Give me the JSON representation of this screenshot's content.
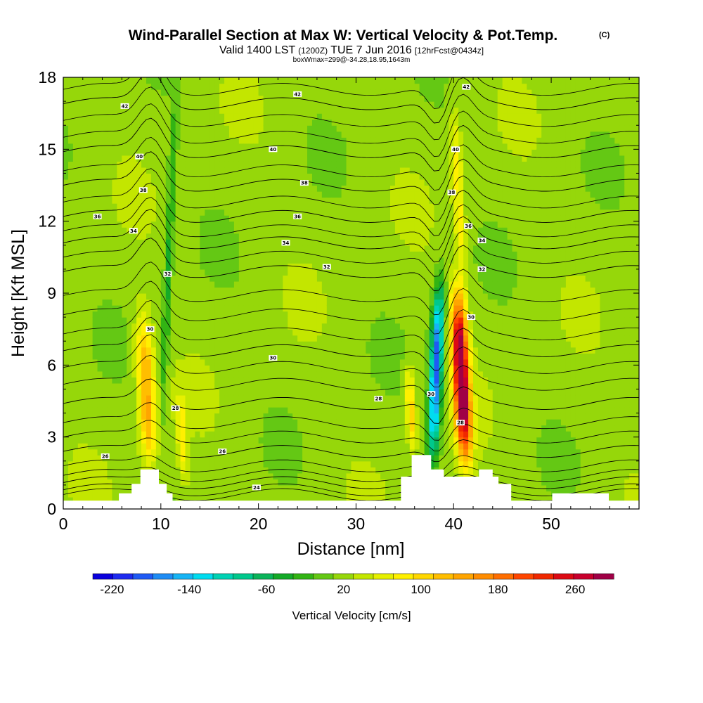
{
  "chart_data": {
    "type": "contour",
    "title": "Wind-Parallel Section at Max W: Vertical Velocity & Pot.Temp.",
    "title_mark": "(C)",
    "subtitle_parts": [
      "Valid 1400 LST",
      "(1200Z)",
      "TUE 7 Jun 2016",
      "[12hrFcst@0434z]"
    ],
    "subtitle2": "boxWmax=299@-34.28,18.95,1643m",
    "xlabel": "Distance [nm]",
    "ylabel": "Height [Kft MSL]",
    "xlim": [
      0,
      59
    ],
    "ylim": [
      0,
      18
    ],
    "xticks": [
      0,
      10,
      20,
      30,
      40,
      50
    ],
    "yticks": [
      0,
      3,
      6,
      9,
      12,
      15,
      18
    ],
    "colorbar": {
      "label": "Vertical Velocity [cm/s]",
      "min": -240,
      "max": 300,
      "step": 20,
      "tick_labels": [
        "-220",
        "-140",
        "-60",
        "20",
        "100",
        "180",
        "260"
      ],
      "tick_values": [
        -220,
        -140,
        -60,
        20,
        100,
        180,
        260
      ],
      "colors": [
        "#0a00dc",
        "#1e2bf0",
        "#1f5af5",
        "#1e8cf5",
        "#16b4f5",
        "#00dcf0",
        "#00d2b4",
        "#00c88c",
        "#0ab45a",
        "#14aa28",
        "#32b414",
        "#64c814",
        "#96d70a",
        "#c3e600",
        "#e6f000",
        "#fff000",
        "#ffd700",
        "#ffbe00",
        "#ffa500",
        "#ff8c00",
        "#ff6e00",
        "#ff4600",
        "#f02800",
        "#dc0a14",
        "#c8002d",
        "#a00046"
      ]
    },
    "w_features": [
      {
        "label": "updraft",
        "x": 8.5,
        "z_bottom": 1.8,
        "z_top": 8.2,
        "width": 2.2,
        "w_max": 120
      },
      {
        "label": "downdraft",
        "x": 10.8,
        "z_bottom": 3.5,
        "z_top": 17.5,
        "width": 1.0,
        "w_max": -60
      },
      {
        "label": "updraft",
        "x": 12.2,
        "z_bottom": 1.0,
        "z_top": 5.0,
        "width": 1.3,
        "w_max": 60
      },
      {
        "label": "updraft",
        "x": 35.6,
        "z_bottom": 2.5,
        "z_top": 6.0,
        "width": 1.2,
        "w_max": 90
      },
      {
        "label": "downdraft",
        "x": 38.2,
        "z_bottom": 2.0,
        "z_top": 9.5,
        "width": 1.6,
        "w_max": -200
      },
      {
        "label": "updraft",
        "x": 40.8,
        "z_bottom": 2.0,
        "z_top": 9.0,
        "width": 2.0,
        "w_max": 300
      },
      {
        "label": "updraft",
        "x": 40.5,
        "z_bottom": 9.0,
        "z_top": 17.0,
        "width": 1.4,
        "w_max": 60
      }
    ],
    "theta_isentropes": {
      "units": "C",
      "levels": [
        24,
        26,
        28,
        30,
        32,
        34,
        36,
        38,
        40,
        42
      ],
      "contour_labels": [
        {
          "text": "42",
          "x": 6.3,
          "z": 16.8
        },
        {
          "text": "42",
          "x": 24.0,
          "z": 17.3
        },
        {
          "text": "42",
          "x": 41.3,
          "z": 17.6
        },
        {
          "text": "40",
          "x": 7.8,
          "z": 14.7
        },
        {
          "text": "40",
          "x": 21.5,
          "z": 15.0
        },
        {
          "text": "40",
          "x": 40.2,
          "z": 15.0
        },
        {
          "text": "38",
          "x": 8.2,
          "z": 13.3
        },
        {
          "text": "38",
          "x": 24.7,
          "z": 13.6
        },
        {
          "text": "38",
          "x": 39.8,
          "z": 13.2
        },
        {
          "text": "36",
          "x": 3.5,
          "z": 12.2
        },
        {
          "text": "36",
          "x": 24.0,
          "z": 12.2
        },
        {
          "text": "36",
          "x": 41.5,
          "z": 11.8
        },
        {
          "text": "34",
          "x": 7.2,
          "z": 11.6
        },
        {
          "text": "34",
          "x": 22.8,
          "z": 11.1
        },
        {
          "text": "34",
          "x": 42.9,
          "z": 11.2
        },
        {
          "text": "32",
          "x": 10.7,
          "z": 9.8
        },
        {
          "text": "32",
          "x": 27.0,
          "z": 10.1
        },
        {
          "text": "32",
          "x": 42.9,
          "z": 10.0
        },
        {
          "text": "30",
          "x": 8.9,
          "z": 7.5
        },
        {
          "text": "30",
          "x": 21.5,
          "z": 6.3
        },
        {
          "text": "30",
          "x": 41.8,
          "z": 8.0
        },
        {
          "text": "30",
          "x": 37.7,
          "z": 4.8
        },
        {
          "text": "28",
          "x": 11.5,
          "z": 4.2
        },
        {
          "text": "28",
          "x": 32.3,
          "z": 4.6
        },
        {
          "text": "28",
          "x": 40.7,
          "z": 3.6
        },
        {
          "text": "26",
          "x": 4.3,
          "z": 2.2
        },
        {
          "text": "26",
          "x": 16.3,
          "z": 2.4
        },
        {
          "text": "24",
          "x": 19.8,
          "z": 0.9
        }
      ]
    },
    "terrain_kft": [
      [
        0,
        0.35
      ],
      [
        5.7,
        0.35
      ],
      [
        5.7,
        0.65
      ],
      [
        7.0,
        0.65
      ],
      [
        7.0,
        1.05
      ],
      [
        7.9,
        1.05
      ],
      [
        7.9,
        1.65
      ],
      [
        9.8,
        1.65
      ],
      [
        9.8,
        1.05
      ],
      [
        10.6,
        1.05
      ],
      [
        10.6,
        0.65
      ],
      [
        11.2,
        0.65
      ],
      [
        11.2,
        0.35
      ],
      [
        34.6,
        0.35
      ],
      [
        34.6,
        1.35
      ],
      [
        35.7,
        1.35
      ],
      [
        35.7,
        2.25
      ],
      [
        37.7,
        2.25
      ],
      [
        37.7,
        1.65
      ],
      [
        39.0,
        1.65
      ],
      [
        39.0,
        1.35
      ],
      [
        42.6,
        1.35
      ],
      [
        42.6,
        1.65
      ],
      [
        44.0,
        1.65
      ],
      [
        44.0,
        1.35
      ],
      [
        44.6,
        1.35
      ],
      [
        44.6,
        1.05
      ],
      [
        45.9,
        1.05
      ],
      [
        45.9,
        0.35
      ],
      [
        50.1,
        0.35
      ],
      [
        50.1,
        0.65
      ],
      [
        55.9,
        0.65
      ],
      [
        55.9,
        0.35
      ],
      [
        59,
        0.35
      ]
    ]
  }
}
